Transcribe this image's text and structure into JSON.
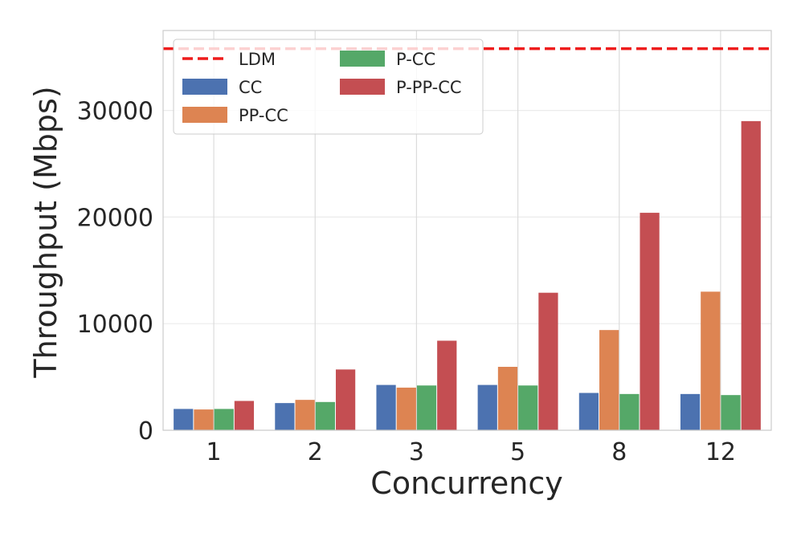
{
  "chart_data": {
    "type": "bar",
    "title": "",
    "xlabel": "Concurrency",
    "ylabel": "Throughput (Mbps)",
    "categories": [
      "1",
      "2",
      "3",
      "5",
      "8",
      "12"
    ],
    "ylim": [
      0,
      37500
    ],
    "yticks": [
      0,
      10000,
      20000,
      30000
    ],
    "ytick_labels": [
      "0",
      "10000",
      "20000",
      "30000"
    ],
    "grid": true,
    "series": [
      {
        "name": "CC",
        "color": "#4c72b0",
        "values": [
          2000,
          2550,
          4250,
          4250,
          3500,
          3400
        ]
      },
      {
        "name": "PP-CC",
        "color": "#dd8452",
        "values": [
          1950,
          2850,
          4000,
          5950,
          9400,
          13000
        ]
      },
      {
        "name": "P-CC",
        "color": "#55a868",
        "values": [
          2000,
          2650,
          4200,
          4200,
          3400,
          3300
        ]
      },
      {
        "name": "P-PP-CC",
        "color": "#c44e52",
        "values": [
          2750,
          5700,
          8400,
          12900,
          20400,
          29000
        ]
      }
    ],
    "reference_line": {
      "name": "LDM",
      "value": 35800,
      "color": "#ee1c1c",
      "style": "dashed"
    },
    "legend": {
      "placement": "top-left",
      "columns": 2,
      "entries": [
        "LDM",
        "CC",
        "PP-CC",
        "P-CC",
        "P-PP-CC"
      ]
    }
  }
}
